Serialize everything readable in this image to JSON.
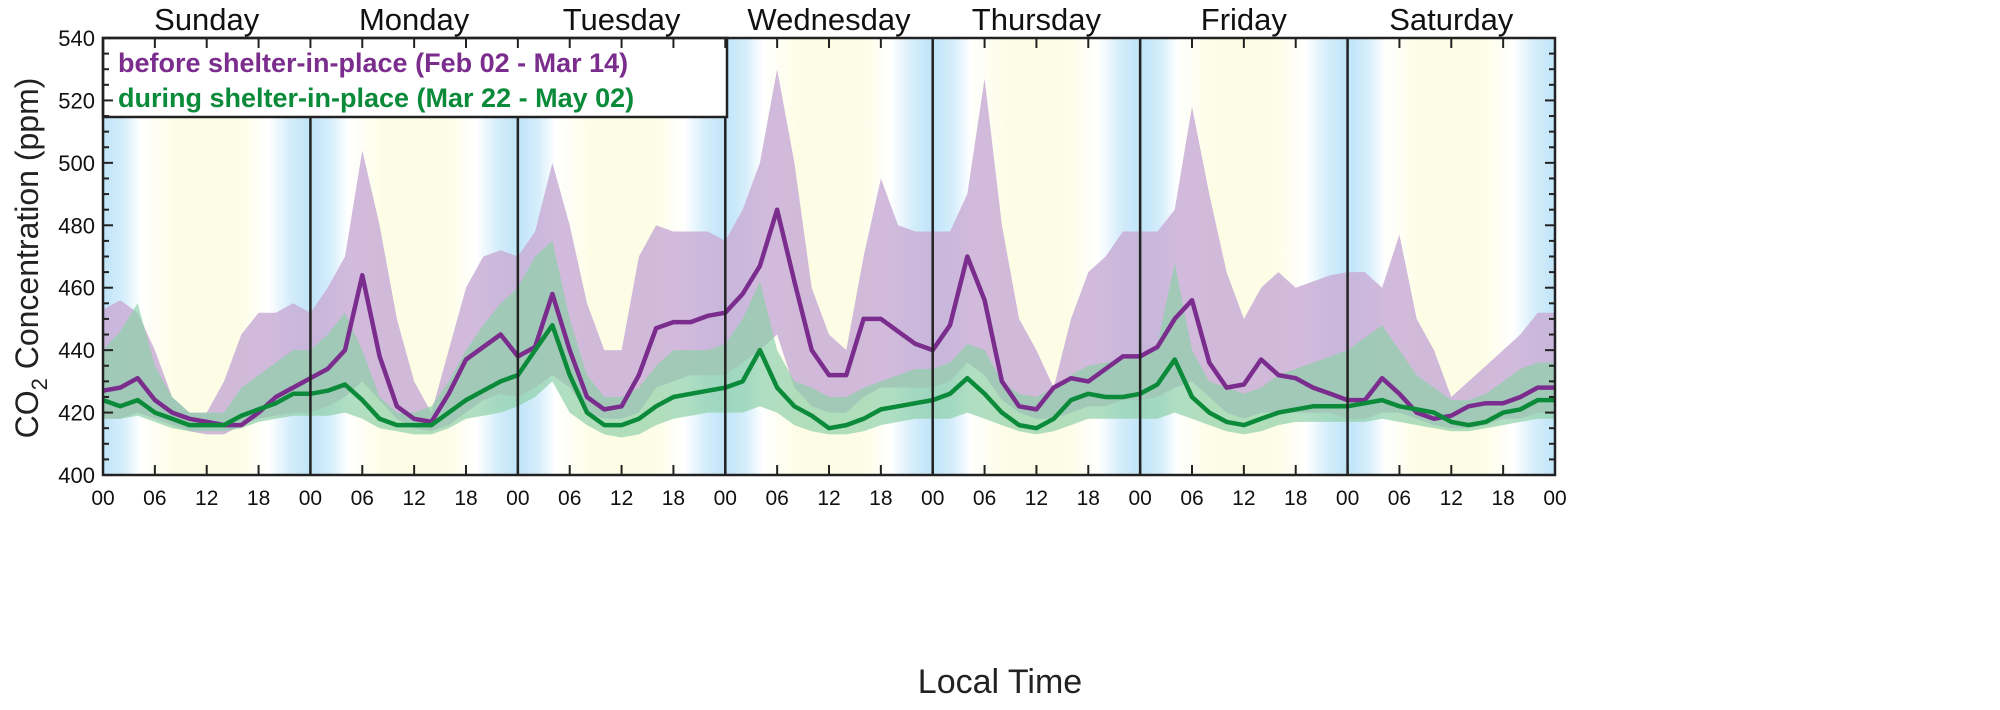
{
  "chart_data": {
    "type": "line",
    "title": "",
    "xlabel": "Local Time",
    "ylabel": "CO2 Concentration (ppm)",
    "ylabel_main": "CO",
    "ylabel_sub": "2",
    "ylabel_rest": " Concentration (ppm)",
    "ylim": [
      400,
      540
    ],
    "yticks": [
      "400",
      "420",
      "440",
      "460",
      "480",
      "500",
      "520",
      "540"
    ],
    "days": [
      "Sunday",
      "Monday",
      "Tuesday",
      "Wednesday",
      "Thursday",
      "Friday",
      "Saturday"
    ],
    "hour_ticks": [
      "00",
      "06",
      "12",
      "18"
    ],
    "final_tick": "00",
    "x_step_hours": 2,
    "legend": [
      "before shelter-in-place (Feb 02 - Mar 14)",
      "during shelter-in-place (Mar 22 - May 02)"
    ],
    "colors": {
      "before": "#7b2d8e",
      "before_band": "#c9aed6",
      "during": "#0b8a3a",
      "during_band": "#8fd0a8",
      "night": "#bfe4f8",
      "day": "#fdfde6"
    },
    "series": [
      {
        "name": "before shelter-in-place (Feb 02 - Mar 14)",
        "mean": [
          427,
          428,
          431,
          424,
          420,
          418,
          417,
          416,
          416,
          420,
          425,
          428,
          431,
          434,
          440,
          464,
          438,
          422,
          418,
          417,
          426,
          437,
          441,
          445,
          438,
          441,
          458,
          440,
          425,
          421,
          422,
          432,
          447,
          449,
          449,
          451,
          452,
          458,
          467,
          485,
          462,
          440,
          432,
          432,
          450,
          450,
          446,
          442,
          440,
          448,
          470,
          456,
          430,
          422,
          421,
          428,
          431,
          430,
          434,
          438,
          438,
          441,
          450,
          456,
          436,
          428,
          429,
          437,
          432,
          431,
          428,
          426,
          424,
          424,
          431,
          426,
          420,
          418,
          419,
          422,
          423,
          423,
          425,
          428
        ],
        "upper": [
          453,
          456,
          452,
          440,
          425,
          420,
          420,
          430,
          445,
          452,
          452,
          455,
          452,
          460,
          470,
          504,
          480,
          450,
          430,
          420,
          440,
          460,
          470,
          472,
          470,
          478,
          500,
          480,
          455,
          440,
          440,
          470,
          480,
          478,
          478,
          478,
          475,
          485,
          500,
          530,
          500,
          460,
          445,
          440,
          470,
          495,
          480,
          478,
          478,
          478,
          490,
          527,
          480,
          450,
          440,
          428,
          450,
          465,
          470,
          478,
          478,
          478,
          485,
          518,
          490,
          465,
          450,
          460,
          465,
          460,
          462,
          464,
          465,
          465,
          460,
          477,
          450,
          440,
          425,
          430,
          435,
          440,
          445,
          452
        ],
        "lower": [
          418,
          418,
          420,
          418,
          416,
          414,
          413,
          413,
          416,
          418,
          419,
          420,
          420,
          422,
          425,
          430,
          424,
          418,
          415,
          414,
          416,
          420,
          424,
          426,
          425,
          428,
          432,
          428,
          420,
          418,
          418,
          420,
          428,
          430,
          432,
          432,
          432,
          436,
          440,
          445,
          428,
          422,
          420,
          420,
          425,
          428,
          428,
          428,
          428,
          430,
          436,
          432,
          424,
          420,
          418,
          418,
          420,
          422,
          422,
          424,
          424,
          425,
          428,
          430,
          425,
          420,
          418,
          420,
          420,
          420,
          420,
          420,
          418,
          418,
          420,
          420,
          418,
          416,
          415,
          415,
          416,
          418,
          418,
          420
        ]
      },
      {
        "name": "during shelter-in-place (Mar 22 - May 02)",
        "mean": [
          424,
          422,
          424,
          420,
          418,
          416,
          416,
          416,
          419,
          421,
          423,
          426,
          426,
          427,
          429,
          424,
          418,
          416,
          416,
          416,
          420,
          424,
          427,
          430,
          432,
          440,
          448,
          432,
          420,
          416,
          416,
          418,
          422,
          425,
          426,
          427,
          428,
          430,
          440,
          428,
          422,
          419,
          415,
          416,
          418,
          421,
          422,
          423,
          424,
          426,
          431,
          426,
          420,
          416,
          415,
          418,
          424,
          426,
          425,
          425,
          426,
          429,
          437,
          425,
          420,
          417,
          416,
          418,
          420,
          421,
          422,
          422,
          422,
          423,
          424,
          422,
          421,
          420,
          417,
          416,
          417,
          420,
          421,
          424
        ],
        "upper": [
          440,
          446,
          455,
          435,
          425,
          420,
          420,
          420,
          428,
          432,
          436,
          440,
          440,
          445,
          452,
          440,
          425,
          420,
          420,
          422,
          430,
          440,
          448,
          455,
          460,
          470,
          475,
          450,
          432,
          425,
          425,
          428,
          435,
          440,
          440,
          440,
          442,
          450,
          462,
          440,
          430,
          428,
          425,
          425,
          428,
          430,
          432,
          434,
          434,
          436,
          442,
          440,
          430,
          426,
          425,
          428,
          432,
          435,
          436,
          437,
          438,
          442,
          468,
          440,
          430,
          428,
          426,
          428,
          432,
          434,
          436,
          438,
          440,
          444,
          448,
          440,
          432,
          428,
          424,
          424,
          426,
          430,
          434,
          436
        ],
        "lower": [
          418,
          418,
          419,
          417,
          415,
          414,
          414,
          414,
          415,
          417,
          418,
          419,
          419,
          419,
          420,
          418,
          415,
          414,
          413,
          413,
          415,
          418,
          419,
          420,
          422,
          425,
          430,
          420,
          416,
          413,
          412,
          413,
          416,
          418,
          419,
          420,
          420,
          420,
          422,
          420,
          416,
          414,
          413,
          413,
          414,
          416,
          417,
          418,
          418,
          418,
          420,
          418,
          416,
          414,
          413,
          414,
          416,
          418,
          418,
          418,
          418,
          418,
          420,
          418,
          416,
          414,
          413,
          414,
          416,
          417,
          417,
          417,
          417,
          417,
          418,
          417,
          416,
          415,
          414,
          414,
          415,
          416,
          417,
          418
        ]
      }
    ]
  }
}
